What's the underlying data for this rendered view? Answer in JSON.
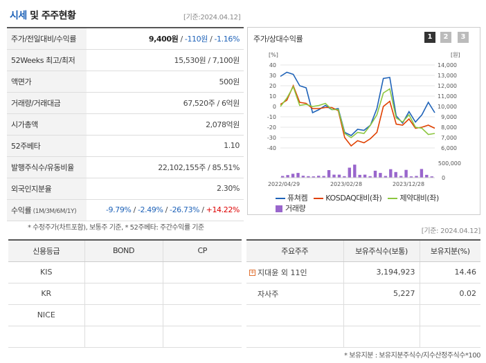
{
  "header": {
    "title_accent": "시세",
    "title_rest": " 및 주주현황",
    "date": "[기준:2024.04.12]"
  },
  "quote": {
    "rows": [
      {
        "label": "주가/전일대비/수익률",
        "price": "9,400원",
        "sep1": " / ",
        "change": "-110원",
        "sep2": " / ",
        "rate": "-1.16%"
      },
      {
        "label": "52Weeks 최고/최저",
        "value": "15,530원 / 7,100원"
      },
      {
        "label": "액면가",
        "value": "500원"
      },
      {
        "label": "거래량/거래대금",
        "value": "67,520주 / 6억원"
      },
      {
        "label": "시가총액",
        "value": "2,078억원"
      },
      {
        "label": "52주베타",
        "value": "1.10"
      },
      {
        "label": "발행주식수/유동비율",
        "value": "22,102,155주 / 85.51%"
      },
      {
        "label": "외국인지분율",
        "value": "2.30%"
      },
      {
        "label": "수익률",
        "label_small": " (1M/3M/6M/1Y)",
        "r1": "-9.79%",
        "r2": "-2.49%",
        "r3": "-26.73%",
        "r4": "+14.22%",
        "sep": " / "
      }
    ]
  },
  "footnote1": "* 수정주가(차트포함), 보통주 기준, * 52주베타: 주간수익률 기준",
  "chart": {
    "title": "주가/상대수익률",
    "pages": [
      "1",
      "2",
      "3"
    ],
    "legend": {
      "line1": "퓨쳐켐",
      "line2": "KOSDAQ대비(좌)",
      "line3": "제약대비(좌)",
      "bar": "거래량"
    }
  },
  "chart_data": {
    "type": "line",
    "left_axis_unit": "[%]",
    "right_axis_unit": "[원]",
    "left_ticks": [
      40,
      30,
      20,
      10,
      0,
      -10,
      -20,
      -30,
      -40
    ],
    "right_ticks": [
      "14,000",
      "13,000",
      "12,000",
      "11,000",
      "10,000",
      "9,000",
      "8,000",
      "7,000",
      "6,000"
    ],
    "volume_ticks": [
      "500,000",
      "0"
    ],
    "ylim_left": [
      -40,
      40
    ],
    "ylim_right": [
      6000,
      14000
    ],
    "x_labels": [
      "2022/04/29",
      "2023/02/28",
      "2023/12/28"
    ],
    "series": [
      {
        "name": "퓨쳐켐",
        "color": "#1e62b8",
        "values": [
          29,
          33,
          31,
          20,
          18,
          -6,
          -3,
          1,
          -3,
          -2,
          -25,
          -28,
          -22,
          -23,
          -18,
          -2,
          27,
          28,
          -9,
          -16,
          -5,
          -15,
          -8,
          4,
          -6
        ]
      },
      {
        "name": "KOSDAQ대비(좌)",
        "color": "#e04000",
        "values": [
          2,
          6,
          20,
          4,
          3,
          -2,
          -2,
          -1,
          -1,
          -4,
          -30,
          -38,
          -33,
          -35,
          -31,
          -25,
          0,
          5,
          -17,
          -18,
          -12,
          -21,
          -20,
          -18,
          -21
        ]
      },
      {
        "name": "제약대비(좌)",
        "color": "#8cc63f",
        "values": [
          0,
          8,
          19,
          1,
          2,
          0,
          1,
          3,
          -3,
          -3,
          -26,
          -30,
          -25,
          -26,
          -18,
          -8,
          13,
          17,
          -11,
          -15,
          -8,
          -20,
          -21,
          -27,
          -26
        ]
      }
    ],
    "volume": {
      "name": "거래량",
      "color": "#9966cc",
      "ylim": [
        0,
        700000
      ],
      "values": [
        80000,
        120000,
        180000,
        220000,
        90000,
        70000,
        60000,
        90000,
        80000,
        350000,
        140000,
        140000,
        70000,
        460000,
        600000,
        130000,
        140000,
        70000,
        320000,
        220000,
        80000,
        390000,
        260000,
        80000,
        360000,
        60000,
        80000,
        400000,
        130000,
        60000
      ]
    }
  },
  "date2": "[기준: 2024.04.12]",
  "credit": {
    "headers": [
      "신용등급",
      "BOND",
      "CP"
    ],
    "rows": [
      [
        "KIS",
        "",
        ""
      ],
      [
        "KR",
        "",
        ""
      ],
      [
        "NICE",
        "",
        ""
      ],
      [
        "",
        "",
        ""
      ]
    ]
  },
  "holders": {
    "headers": [
      "주요주주",
      "보유주식수(보통)",
      "보유지분(%)"
    ],
    "rows": [
      {
        "name": "지대윤 외 11인",
        "shares": "3,194,923",
        "pct": "14.46",
        "expand": true
      },
      {
        "name": "자사주",
        "shares": "5,227",
        "pct": "0.02",
        "expand": false
      },
      {
        "name": "",
        "shares": "",
        "pct": "",
        "expand": false
      },
      {
        "name": "",
        "shares": "",
        "pct": "",
        "expand": false
      }
    ]
  },
  "footnote2": "* 보유지분 : 보유지분주식수/지수산정주식수*100"
}
